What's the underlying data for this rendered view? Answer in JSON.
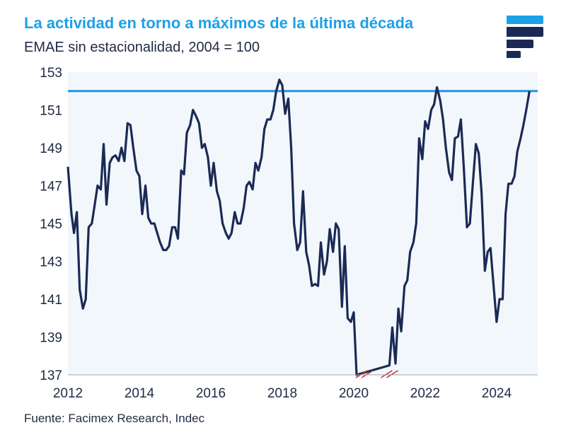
{
  "header": {
    "title": "La actividad en torno a máximos de la última década",
    "subtitle": "EMAE sin estacionalidad, 2004 = 100"
  },
  "footer": {
    "source": "Fuente: Facimex Research, Indec"
  },
  "colors": {
    "title": "#1ea0e6",
    "series": "#1b2a55",
    "reference": "#2196e8",
    "plot_bg": "#f2f7fc",
    "break_marks": "#c0392b"
  },
  "chart_data": {
    "type": "line",
    "xlabel": "",
    "ylabel": "",
    "xlim": [
      2012.0,
      2025.15
    ],
    "ylim": [
      137,
      153
    ],
    "x_ticks": [
      2012,
      2014,
      2016,
      2018,
      2020,
      2022,
      2024
    ],
    "y_ticks": [
      137,
      139,
      141,
      143,
      145,
      147,
      149,
      151,
      153
    ],
    "reference_line": {
      "y": 152.0
    },
    "axis_break_marks": [
      2020.3,
      2021.0
    ],
    "series": [
      {
        "name": "EMAE sin estacionalidad",
        "points": [
          [
            2012.0,
            148.0
          ],
          [
            2012.1,
            145.5
          ],
          [
            2012.17,
            144.5
          ],
          [
            2012.25,
            145.6
          ],
          [
            2012.33,
            141.5
          ],
          [
            2012.42,
            140.5
          ],
          [
            2012.5,
            141.0
          ],
          [
            2012.58,
            144.8
          ],
          [
            2012.67,
            145.0
          ],
          [
            2012.75,
            146.0
          ],
          [
            2012.83,
            147.0
          ],
          [
            2012.92,
            146.8
          ],
          [
            2013.0,
            149.2
          ],
          [
            2013.08,
            146.0
          ],
          [
            2013.17,
            148.2
          ],
          [
            2013.25,
            148.5
          ],
          [
            2013.33,
            148.6
          ],
          [
            2013.42,
            148.3
          ],
          [
            2013.5,
            149.0
          ],
          [
            2013.58,
            148.3
          ],
          [
            2013.67,
            150.3
          ],
          [
            2013.75,
            150.2
          ],
          [
            2013.83,
            149.0
          ],
          [
            2013.92,
            147.8
          ],
          [
            2014.0,
            147.5
          ],
          [
            2014.08,
            145.5
          ],
          [
            2014.17,
            147.0
          ],
          [
            2014.25,
            145.3
          ],
          [
            2014.33,
            145.0
          ],
          [
            2014.42,
            145.0
          ],
          [
            2014.5,
            144.5
          ],
          [
            2014.58,
            144.0
          ],
          [
            2014.67,
            143.6
          ],
          [
            2014.75,
            143.6
          ],
          [
            2014.83,
            143.8
          ],
          [
            2014.92,
            144.8
          ],
          [
            2015.0,
            144.8
          ],
          [
            2015.08,
            144.2
          ],
          [
            2015.17,
            147.8
          ],
          [
            2015.25,
            147.6
          ],
          [
            2015.33,
            149.8
          ],
          [
            2015.42,
            150.2
          ],
          [
            2015.5,
            151.0
          ],
          [
            2015.58,
            150.7
          ],
          [
            2015.67,
            150.3
          ],
          [
            2015.75,
            149.0
          ],
          [
            2015.83,
            149.2
          ],
          [
            2015.92,
            148.5
          ],
          [
            2016.0,
            147.0
          ],
          [
            2016.08,
            148.2
          ],
          [
            2016.17,
            146.7
          ],
          [
            2016.25,
            146.2
          ],
          [
            2016.33,
            145.0
          ],
          [
            2016.42,
            144.5
          ],
          [
            2016.5,
            144.2
          ],
          [
            2016.58,
            144.5
          ],
          [
            2016.67,
            145.6
          ],
          [
            2016.75,
            145.0
          ],
          [
            2016.83,
            145.0
          ],
          [
            2016.92,
            145.8
          ],
          [
            2017.0,
            147.0
          ],
          [
            2017.08,
            147.2
          ],
          [
            2017.17,
            146.8
          ],
          [
            2017.25,
            148.2
          ],
          [
            2017.33,
            147.8
          ],
          [
            2017.42,
            148.5
          ],
          [
            2017.5,
            150.0
          ],
          [
            2017.58,
            150.5
          ],
          [
            2017.67,
            150.5
          ],
          [
            2017.75,
            151.0
          ],
          [
            2017.83,
            152.0
          ],
          [
            2017.92,
            152.6
          ],
          [
            2018.0,
            152.3
          ],
          [
            2018.08,
            150.8
          ],
          [
            2018.17,
            151.6
          ],
          [
            2018.25,
            149.0
          ],
          [
            2018.33,
            145.0
          ],
          [
            2018.42,
            143.6
          ],
          [
            2018.5,
            144.0
          ],
          [
            2018.58,
            146.7
          ],
          [
            2018.67,
            143.5
          ],
          [
            2018.75,
            142.8
          ],
          [
            2018.83,
            141.7
          ],
          [
            2018.92,
            141.8
          ],
          [
            2019.0,
            141.7
          ],
          [
            2019.08,
            144.0
          ],
          [
            2019.17,
            142.3
          ],
          [
            2019.25,
            143.0
          ],
          [
            2019.33,
            144.7
          ],
          [
            2019.42,
            143.5
          ],
          [
            2019.5,
            145.0
          ],
          [
            2019.58,
            144.7
          ],
          [
            2019.67,
            140.6
          ],
          [
            2019.75,
            143.8
          ],
          [
            2019.83,
            140.0
          ],
          [
            2019.92,
            139.8
          ],
          [
            2020.0,
            140.3
          ],
          [
            2020.08,
            137.0
          ],
          [
            2021.0,
            137.5
          ],
          [
            2021.08,
            139.5
          ],
          [
            2021.17,
            137.6
          ],
          [
            2021.25,
            140.5
          ],
          [
            2021.33,
            139.3
          ],
          [
            2021.42,
            141.7
          ],
          [
            2021.5,
            142.0
          ],
          [
            2021.58,
            143.5
          ],
          [
            2021.67,
            144.0
          ],
          [
            2021.75,
            145.0
          ],
          [
            2021.83,
            149.5
          ],
          [
            2021.92,
            148.4
          ],
          [
            2022.0,
            150.4
          ],
          [
            2022.08,
            150.0
          ],
          [
            2022.17,
            151.0
          ],
          [
            2022.25,
            151.3
          ],
          [
            2022.33,
            152.2
          ],
          [
            2022.42,
            151.5
          ],
          [
            2022.5,
            150.5
          ],
          [
            2022.58,
            149.0
          ],
          [
            2022.67,
            147.7
          ],
          [
            2022.75,
            147.3
          ],
          [
            2022.83,
            149.5
          ],
          [
            2022.92,
            149.6
          ],
          [
            2023.0,
            150.5
          ],
          [
            2023.08,
            148.0
          ],
          [
            2023.17,
            144.8
          ],
          [
            2023.25,
            145.0
          ],
          [
            2023.33,
            147.0
          ],
          [
            2023.42,
            149.2
          ],
          [
            2023.5,
            148.7
          ],
          [
            2023.58,
            146.6
          ],
          [
            2023.67,
            142.5
          ],
          [
            2023.75,
            143.5
          ],
          [
            2023.83,
            143.7
          ],
          [
            2023.92,
            141.6
          ],
          [
            2024.0,
            139.8
          ],
          [
            2024.08,
            141.0
          ],
          [
            2024.17,
            141.0
          ],
          [
            2024.25,
            145.5
          ],
          [
            2024.33,
            147.1
          ],
          [
            2024.42,
            147.1
          ],
          [
            2024.5,
            147.5
          ],
          [
            2024.58,
            148.8
          ],
          [
            2024.67,
            149.5
          ],
          [
            2024.75,
            150.2
          ],
          [
            2024.83,
            151.0
          ],
          [
            2024.92,
            152.0
          ]
        ]
      }
    ]
  }
}
